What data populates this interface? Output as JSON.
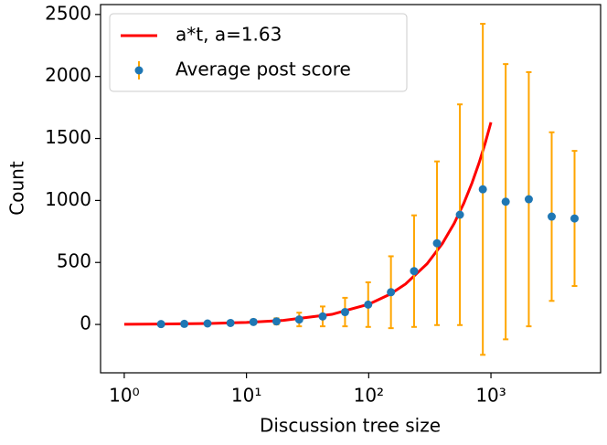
{
  "chart_data": {
    "type": "scatter",
    "xlabel": "Discussion tree size",
    "ylabel": "Count",
    "xscale": "log",
    "xlim": [
      0.64,
      7890
    ],
    "ylim": [
      -390,
      2580
    ],
    "xticks": [
      {
        "value": 1,
        "label": "10⁰"
      },
      {
        "value": 10,
        "label": "10¹"
      },
      {
        "value": 100,
        "label": "10²"
      },
      {
        "value": 1000,
        "label": "10³"
      }
    ],
    "yticks": [
      0,
      500,
      1000,
      1500,
      2000,
      2500
    ],
    "legend": "upper left",
    "series": [
      {
        "name": "a*t, a=1.63",
        "type": "line",
        "color": "#ff0000",
        "x": [
          1,
          2,
          5,
          10,
          20,
          50,
          100,
          150,
          200,
          300,
          400,
          500,
          600,
          700,
          800,
          900,
          1000
        ],
        "values": [
          1.63,
          3.26,
          8.15,
          16.3,
          32.6,
          81.5,
          163,
          244.5,
          326,
          489,
          652,
          815,
          978,
          1141,
          1304,
          1467,
          1630
        ]
      },
      {
        "name": "Average post score",
        "type": "errorbar",
        "color": "#1f77b4",
        "ecolor": "#ffa500",
        "x": [
          2,
          3.1,
          4.8,
          7.4,
          11.4,
          17.6,
          27,
          42,
          64,
          99,
          152,
          235,
          362,
          557,
          858,
          1320,
          2040,
          3140,
          4830
        ],
        "values": [
          3,
          5,
          8,
          12,
          20,
          25,
          40,
          65,
          100,
          160,
          260,
          430,
          655,
          885,
          1090,
          990,
          1010,
          870,
          855
        ],
        "errors": [
          2,
          4,
          6,
          10,
          20,
          25,
          55,
          80,
          115,
          180,
          290,
          450,
          660,
          890,
          1335,
          1110,
          1025,
          680,
          545
        ]
      }
    ]
  }
}
